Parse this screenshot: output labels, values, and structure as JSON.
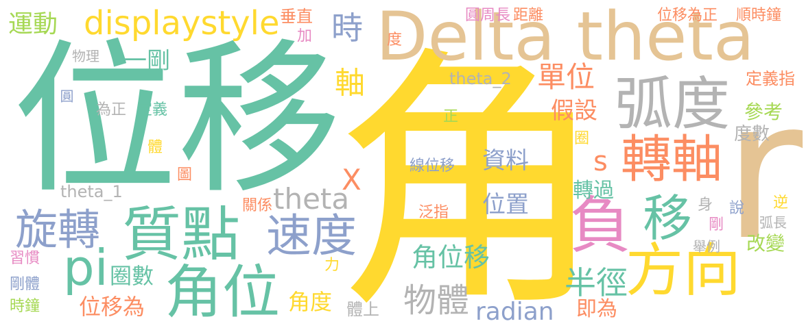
{
  "palette": {
    "green": "#66c2a5",
    "yellow": "#ffd92f",
    "tan": "#e5c494",
    "gray": "#b3b3b3",
    "blue": "#8da0cb",
    "orange": "#fc8d62",
    "pink": "#e78ac3",
    "lime": "#a6d854"
  },
  "words": {
    "jiao": "角",
    "weiyi": "位移",
    "delta_theta": "Delta theta",
    "r": "r",
    "hudu": "弧度",
    "zhuanzhou": "轉軸",
    "fu": "負",
    "yi": "移",
    "fangxiang": "方向",
    "zhidian": "質點",
    "jiaowei": "角位",
    "xuanzhuan": "旋轉",
    "pi": "pi",
    "sudu": "速度",
    "displaystyle": "displaystyle",
    "yundong": "運動",
    "shi": "時",
    "theta": "theta",
    "jiaoweiyi": "角位移",
    "wuti": "物體",
    "radian": "radian",
    "banjing": "半徑",
    "danwei": "單位",
    "jiashe": "假設",
    "zhou": "軸",
    "yigang": "一剛",
    "s": "s",
    "x": "X",
    "ziliao": "資料",
    "weizhi": "位置",
    "jiaodu": "角度",
    "quanshu": "圈數",
    "weiyiwei": "位移為",
    "cankao": "參考",
    "dushu": "度數",
    "zhuanguo": "轉過",
    "gaibian": "改變",
    "jiwei": "即為",
    "theta_2": "theta_2",
    "theta_1": "theta_1",
    "xianweiyi": "線位移",
    "fanzhi": "泛指",
    "dingyi": "定義",
    "weizheng": "為正",
    "wuli": "物理",
    "yuan": "圓",
    "jia": "加",
    "chuizhi": "垂直",
    "du": "度",
    "yuanzhouchang": "圓周長",
    "juli": "距離",
    "weiyiweizheng": "位移為正",
    "shunshizhong": "順時鐘",
    "dingyizhi": "定義指",
    "zheng": "正",
    "ti": "體",
    "tu": "圖",
    "quan": "圈",
    "guanxi": "關係",
    "li": "力",
    "shenti": "身",
    "gang": "剛",
    "shuo": "說",
    "ni": "逆",
    "huchang": "弧長",
    "juli2": "舉例",
    "xiguan": "習慣",
    "gangti": "剛體",
    "shizhong": "時鐘",
    "tishang": "體上"
  }
}
